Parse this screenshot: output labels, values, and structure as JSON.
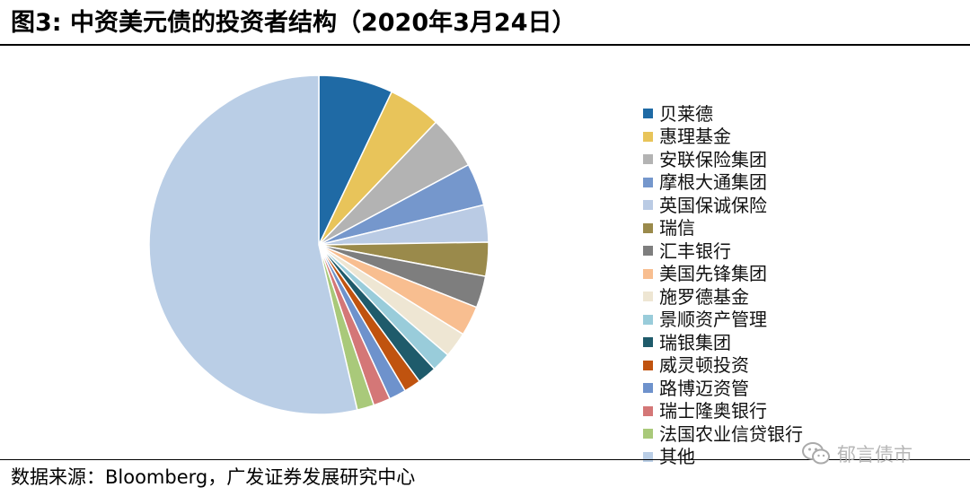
{
  "title": "图3:  中资美元债的投资者结构（2020年3月24日）",
  "source": "数据来源：Bloomberg，广发证券发展研究中心",
  "watermark": "郁言债市",
  "chart_data": {
    "type": "pie",
    "start_angle_deg": 0,
    "direction": "clockwise",
    "slices": [
      {
        "label": "贝莱德",
        "value": 7.0,
        "color": "#1F6AA5"
      },
      {
        "label": "惠理基金",
        "value": 5.0,
        "color": "#E8C45A"
      },
      {
        "label": "安联保险集团",
        "value": 5.0,
        "color": "#B3B3B3"
      },
      {
        "label": "摩根大通集团",
        "value": 4.0,
        "color": "#7597CC"
      },
      {
        "label": "英国保诚保险",
        "value": 3.5,
        "color": "#BACBE4"
      },
      {
        "label": "瑞信",
        "value": 3.2,
        "color": "#9A8A4B"
      },
      {
        "label": "汇丰银行",
        "value": 3.0,
        "color": "#7E7E7E"
      },
      {
        "label": "美国先锋集团",
        "value": 2.8,
        "color": "#F8BE90"
      },
      {
        "label": "施罗德基金",
        "value": 2.4,
        "color": "#EEE6D3"
      },
      {
        "label": "景顺资产管理",
        "value": 1.8,
        "color": "#99CCDA"
      },
      {
        "label": "瑞银集团",
        "value": 1.8,
        "color": "#1F5B6B"
      },
      {
        "label": "威灵顿投资",
        "value": 1.6,
        "color": "#C0530F"
      },
      {
        "label": "路博迈资管",
        "value": 1.6,
        "color": "#6E92CC"
      },
      {
        "label": "瑞士隆奥银行",
        "value": 1.6,
        "color": "#D47777"
      },
      {
        "label": "法国农业信贷银行",
        "value": 1.6,
        "color": "#A9C97A"
      },
      {
        "label": "其他",
        "value": 53.1,
        "color": "#BACEE6"
      }
    ]
  }
}
